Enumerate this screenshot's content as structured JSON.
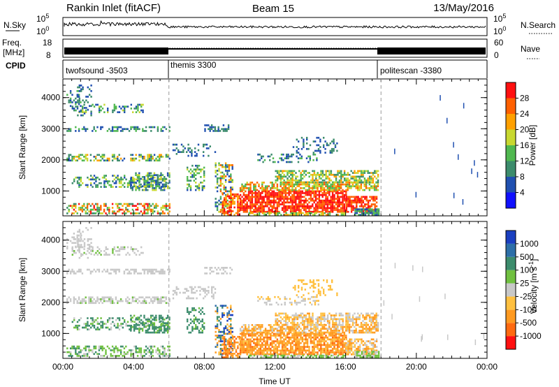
{
  "header": {
    "station": "Rankin Inlet (fitACF)",
    "beam": "Beam 15",
    "date": "13/May/2016"
  },
  "panels": {
    "nsky": {
      "left_label": "N.Sky",
      "right_label": "N.Search",
      "tick_top": "10^5",
      "tick_bottom": "10^0"
    },
    "freq": {
      "label_line1": "Freq.",
      "label_line2": "[MHz]",
      "tick_top": "18",
      "tick_bottom": "8",
      "right_tick_top": "60",
      "right_tick_bottom": "0",
      "right_label": "Nave"
    },
    "cpid": {
      "label": "CPID",
      "segments": [
        {
          "name": "twofsound -3503",
          "start_hour": 0,
          "end_hour": 6
        },
        {
          "name": "themis 3300",
          "start_hour": 6,
          "end_hour": 18
        },
        {
          "name": "politescan -3380",
          "start_hour": 18,
          "end_hour": 24
        }
      ]
    }
  },
  "chart_data": [
    {
      "type": "heatmap",
      "name": "Power",
      "ylabel": "Slant Range [km]",
      "yticks": [
        1000,
        2000,
        3000,
        4000
      ],
      "ylim": [
        200,
        4600
      ],
      "xlim": [
        0,
        24
      ],
      "colorbar_label": "Power [dB]",
      "colorbar_ticks": [
        "4",
        "8",
        "12",
        "16",
        "20",
        "24",
        "28"
      ],
      "colorbar_colors": [
        "#1010ff",
        "#2050b0",
        "#3c8c6c",
        "#50b850",
        "#c8d830",
        "#ffa000",
        "#ff6000",
        "#ff1010"
      ]
    },
    {
      "type": "heatmap",
      "name": "Velocity",
      "ylabel": "Slant Range [km]",
      "xlabel": "Time UT",
      "yticks": [
        1000,
        2000,
        3000,
        4000
      ],
      "ylim": [
        200,
        4600
      ],
      "xlim": [
        0,
        24
      ],
      "xticks": [
        "00:00",
        "04:00",
        "08:00",
        "12:00",
        "16:00",
        "20:00",
        "00:00"
      ],
      "colorbar_label": "Velocity [m s^-1]",
      "colorbar_ticks": [
        "1000",
        "500",
        "100",
        "25",
        "-25",
        "-100",
        "-500",
        "-1000"
      ],
      "colorbar_colors": [
        "#1a3fc0",
        "#2d6fa8",
        "#3c8c6c",
        "#70c040",
        "#c8c8c8",
        "#ffc040",
        "#ff9a20",
        "#ff6a10",
        "#ff1010"
      ]
    }
  ]
}
